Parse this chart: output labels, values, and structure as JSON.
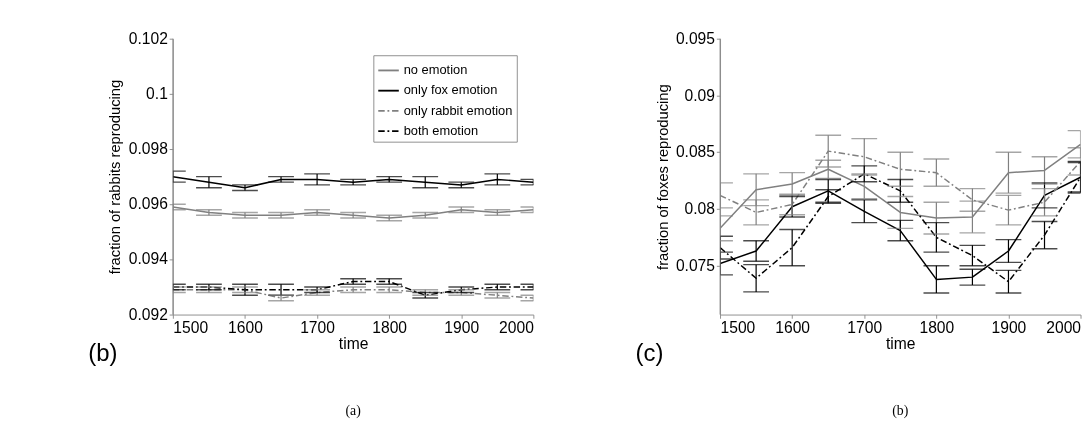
{
  "chart_data": [
    {
      "type": "line",
      "xlabel": "time",
      "ylabel": "fraction of rabbits reproducing",
      "annotations": [
        "(b)",
        "(a)"
      ],
      "x": [
        1500,
        1550,
        1600,
        1650,
        1700,
        1750,
        1800,
        1850,
        1900,
        1950,
        2000
      ],
      "xlim": [
        1500,
        2000
      ],
      "xticks": [
        1500,
        1600,
        1700,
        1800,
        1900,
        2000
      ],
      "ylim": [
        0.092,
        0.102
      ],
      "yticks": [
        0.092,
        0.094,
        0.096,
        0.098,
        0.1,
        0.102
      ],
      "grid": false,
      "legend": "top right",
      "marker": "none",
      "series": [
        {
          "name": "no emotion",
          "color": "#808080",
          "line_style": "solid",
          "values": [
            0.0959,
            0.0957,
            0.0956,
            0.0956,
            0.0957,
            0.0956,
            0.0955,
            0.0956,
            0.0958,
            0.0957,
            0.0958
          ],
          "errors": [
            0.0001,
            0.0001,
            0.0001,
            0.0001,
            0.0001,
            0.0001,
            0.0001,
            0.0001,
            0.0001,
            0.0001,
            0.0001
          ]
        },
        {
          "name": "only fox emotion",
          "color": "#000000",
          "line_style": "solid",
          "values": [
            0.097,
            0.0968,
            0.0966,
            0.0969,
            0.0969,
            0.0968,
            0.0969,
            0.0968,
            0.0967,
            0.0969,
            0.0968
          ],
          "errors": [
            0.0002,
            0.0002,
            0.0001,
            0.0001,
            0.0002,
            0.0001,
            0.0001,
            0.0002,
            0.0001,
            0.0002,
            0.0001
          ]
        },
        {
          "name": "only rabbit emotion",
          "color": "#808080",
          "line_style": "dashed",
          "values": [
            0.0929,
            0.0929,
            0.0929,
            0.0926,
            0.0928,
            0.0929,
            0.0929,
            0.0928,
            0.0928,
            0.0927,
            0.0926
          ],
          "errors": [
            0.0001,
            0.0001,
            0.0001,
            0.0001,
            0.0001,
            0.0001,
            0.0001,
            0.0001,
            0.0001,
            0.0001,
            0.0001
          ]
        },
        {
          "name": "both emotion",
          "color": "#000000",
          "line_style": "dashed",
          "values": [
            0.093,
            0.093,
            0.0929,
            0.0929,
            0.0929,
            0.0932,
            0.0932,
            0.0927,
            0.0929,
            0.093,
            0.093
          ],
          "errors": [
            0.0001,
            0.0001,
            0.0002,
            0.0002,
            0.0001,
            0.0001,
            0.0001,
            0.0001,
            0.0001,
            0.0001,
            0.0001
          ]
        }
      ]
    },
    {
      "type": "line",
      "xlabel": "time",
      "ylabel": "fraction of foxes reproducing",
      "annotations": [
        "(c)",
        "(b)"
      ],
      "x": [
        1500,
        1550,
        1600,
        1650,
        1700,
        1750,
        1800,
        1850,
        1900,
        1950,
        2000
      ],
      "xlim": [
        1500,
        2000
      ],
      "xticks": [
        1500,
        1600,
        1700,
        1800,
        1900,
        2000
      ],
      "ylim": [
        0.0707,
        0.095
      ],
      "yticks": [
        0.075,
        0.08,
        0.085,
        0.09,
        0.095
      ],
      "grid": false,
      "legend": false,
      "marker": "none",
      "series": [
        {
          "color": "#808080",
          "line_style": "solid",
          "values": [
            0.0783,
            0.0817,
            0.0822,
            0.0835,
            0.082,
            0.0797,
            0.0792,
            0.0793,
            0.0832,
            0.0834,
            0.0857
          ],
          "errors": [
            0.0011,
            0.0014,
            0.001,
            0.0008,
            0.0011,
            0.0014,
            0.0014,
            0.0014,
            0.0018,
            0.0012,
            0.0012
          ]
        },
        {
          "color": "#000000",
          "line_style": "solid",
          "values": [
            0.0752,
            0.0763,
            0.0802,
            0.0816,
            0.0798,
            0.0781,
            0.0738,
            0.074,
            0.0763,
            0.0812,
            0.0828
          ],
          "errors": [
            0.001,
            0.0009,
            0.0009,
            0.001,
            0.001,
            0.0009,
            0.0012,
            0.0007,
            0.001,
            0.0011,
            0.0013
          ]
        },
        {
          "color": "#808080",
          "line_style": "dashed",
          "values": [
            0.0812,
            0.0797,
            0.0804,
            0.0851,
            0.0846,
            0.0835,
            0.0832,
            0.0808,
            0.0799,
            0.0806,
            0.0842
          ],
          "errors": [
            0.0011,
            0.0011,
            0.0009,
            0.0014,
            0.0016,
            0.0015,
            0.0012,
            0.001,
            0.0013,
            0.0012,
            0.0012
          ]
        },
        {
          "color": "#000000",
          "line_style": "dashed",
          "values": [
            0.0766,
            0.0739,
            0.0766,
            0.0811,
            0.0831,
            0.0816,
            0.0775,
            0.0759,
            0.0736,
            0.0777,
            0.0828
          ],
          "errors": [
            0.001,
            0.0012,
            0.0016,
            0.0006,
            0.0007,
            0.001,
            0.0013,
            0.0009,
            0.001,
            0.0012,
            0.0014
          ]
        }
      ]
    }
  ]
}
